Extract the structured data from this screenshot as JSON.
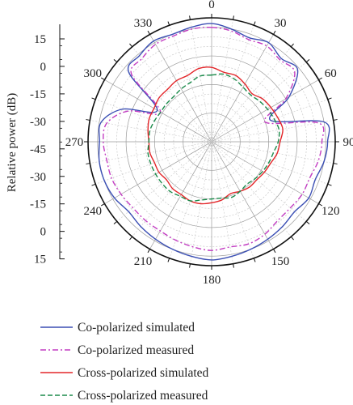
{
  "chart_data": {
    "type": "polar-line",
    "ylabel": "Relative power (dB)",
    "radial_range_db": [
      -45,
      20
    ],
    "radial_ticks": [
      "15",
      "0",
      "-15",
      "-30",
      "-45",
      "-30",
      "-15",
      "0",
      "15"
    ],
    "angle_ticks": [
      0,
      30,
      60,
      90,
      120,
      150,
      180,
      210,
      240,
      270,
      300,
      330
    ],
    "grid": true,
    "legend_position": "bottom",
    "series": [
      {
        "name": "Co-polarized simulated",
        "color": "#3b4fb4",
        "dash": "solid",
        "angles": [
          0,
          10,
          20,
          30,
          40,
          50,
          60,
          70,
          80,
          90,
          100,
          110,
          120,
          130,
          140,
          150,
          160,
          170,
          180,
          190,
          200,
          210,
          220,
          230,
          240,
          250,
          260,
          270,
          280,
          290,
          300,
          310,
          320,
          330,
          340,
          350
        ],
        "values": [
          17,
          15,
          13,
          15,
          12,
          14,
          2,
          -12,
          15,
          16,
          15,
          13,
          14,
          12,
          13,
          14,
          15,
          16,
          17,
          16,
          15,
          14,
          13,
          12,
          14,
          15,
          15,
          14,
          14,
          5,
          -12,
          12,
          14,
          16,
          15,
          16
        ]
      },
      {
        "name": "Co-polarized measured",
        "color": "#c23cc2",
        "dash": "dashdot",
        "angles": [
          0,
          10,
          20,
          30,
          40,
          50,
          60,
          70,
          80,
          90,
          100,
          110,
          120,
          130,
          140,
          150,
          160,
          170,
          180,
          190,
          200,
          210,
          220,
          230,
          240,
          250,
          260,
          270,
          280,
          290,
          300,
          310,
          320,
          330,
          340,
          350
        ],
        "values": [
          15,
          14,
          12,
          13,
          11,
          12,
          0,
          -15,
          12,
          13,
          12,
          10,
          10,
          9,
          9,
          11,
          12,
          11,
          12,
          11,
          10,
          9,
          9,
          9,
          10,
          11,
          11,
          12,
          11,
          2,
          -14,
          10,
          12,
          14,
          14,
          15
        ]
      },
      {
        "name": "Cross-polarized simulated",
        "color": "#e3262a",
        "dash": "solid",
        "angles": [
          0,
          10,
          20,
          30,
          40,
          50,
          60,
          70,
          80,
          90,
          100,
          110,
          120,
          130,
          140,
          150,
          160,
          170,
          180,
          190,
          200,
          210,
          220,
          230,
          240,
          250,
          260,
          270,
          280,
          290,
          300,
          310,
          320,
          330,
          340,
          350
        ],
        "values": [
          -6,
          -8,
          -8,
          -10,
          -12,
          -10,
          -9,
          -8,
          -7,
          -9,
          -10,
          -12,
          -13,
          -14,
          -14,
          -15,
          -16,
          -14,
          -13,
          -12,
          -12,
          -13,
          -13,
          -14,
          -13,
          -13,
          -12,
          -12,
          -11,
          -10,
          -10,
          -9,
          -9,
          -8,
          -8,
          -6
        ]
      },
      {
        "name": "Cross-polarized measured",
        "color": "#1a8a4a",
        "dash": "dashed",
        "angles": [
          0,
          10,
          20,
          30,
          40,
          50,
          60,
          70,
          80,
          90,
          100,
          110,
          120,
          130,
          140,
          150,
          160,
          170,
          180,
          190,
          200,
          210,
          220,
          230,
          240,
          250,
          260,
          270,
          280,
          290,
          300,
          310,
          320,
          330,
          340,
          350
        ],
        "values": [
          -10,
          -9,
          -10,
          -12,
          -13,
          -12,
          -11,
          -10,
          -9,
          -10,
          -12,
          -13,
          -14,
          -15,
          -16,
          -15,
          -14,
          -15,
          -15,
          -14,
          -12,
          -12,
          -11,
          -11,
          -11,
          -11,
          -11,
          -12,
          -12,
          -13,
          -14,
          -14,
          -14,
          -13,
          -12,
          -10
        ]
      }
    ]
  }
}
